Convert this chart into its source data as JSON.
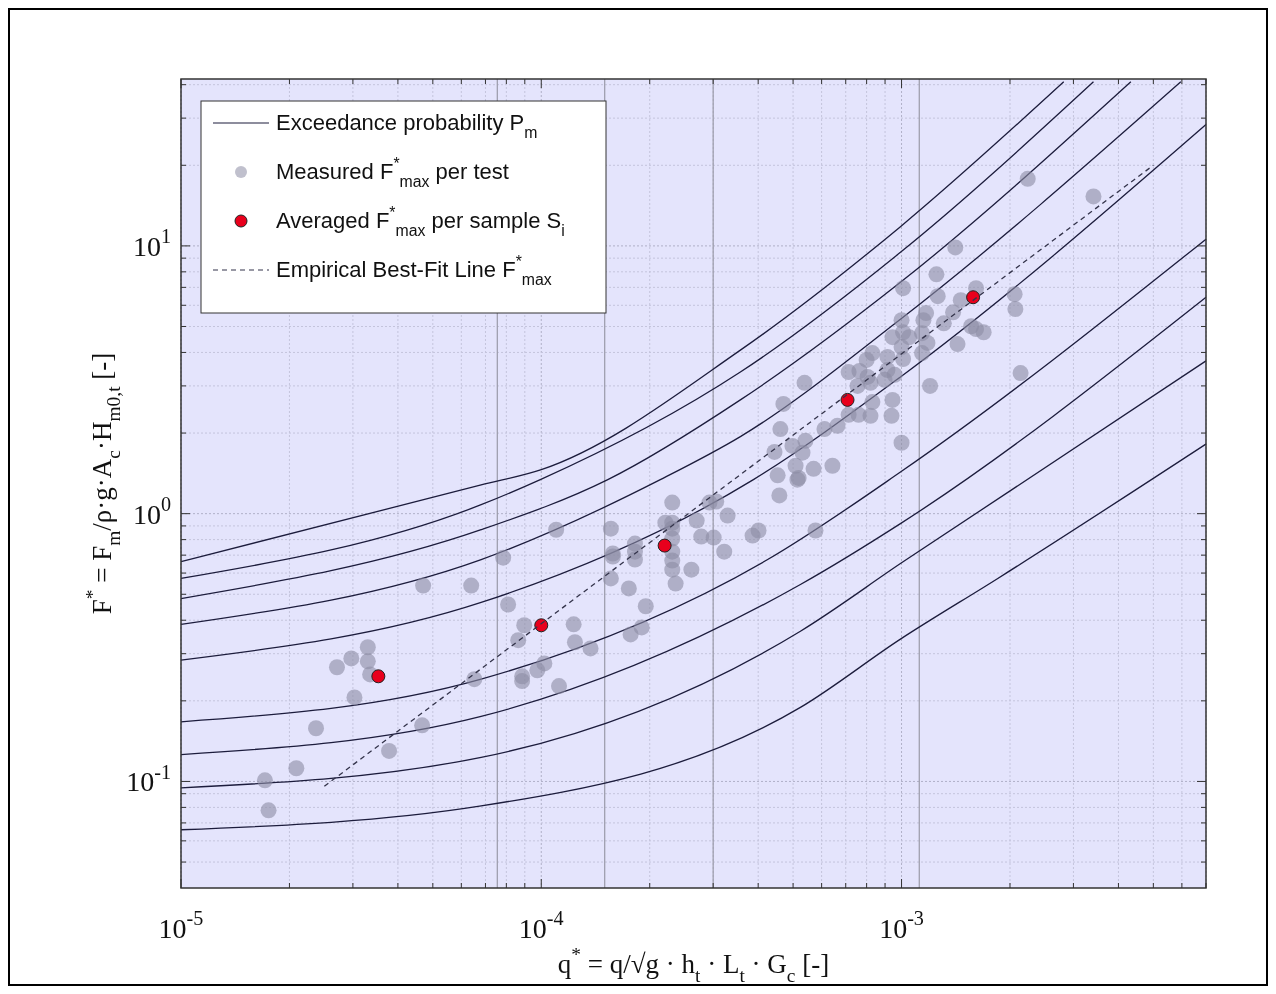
{
  "chart_data": {
    "type": "scatter",
    "xlabel": "q$^{*}$ = q/√g · h$_{t}$ · L$_{t}$ · G$_{c}$ [-]",
    "ylabel": "F$^{*}$ = F$_{m}$/ρ·g·A$_{c}$·H$_{m0,t}$ [-]",
    "log": "xy",
    "grid": true,
    "legend": "top left",
    "xlim": [
      1e-05,
      0.007
    ],
    "ylim": [
      0.04,
      42
    ],
    "xticks": [
      {
        "value": 1e-05,
        "label": "10$^{-5}$"
      },
      {
        "value": 2e-05,
        "label": null
      },
      {
        "value": 3e-05,
        "label": null
      },
      {
        "value": 4e-05,
        "label": null
      },
      {
        "value": 5e-05,
        "label": null
      },
      {
        "value": 6e-05,
        "label": null
      },
      {
        "value": 7e-05,
        "label": null
      },
      {
        "value": 8e-05,
        "label": null
      },
      {
        "value": 9e-05,
        "label": null
      },
      {
        "value": 0.0001,
        "label": "10$^{-4}$"
      },
      {
        "value": 0.0002,
        "label": null
      },
      {
        "value": 0.0003,
        "label": null
      },
      {
        "value": 0.0004,
        "label": null
      },
      {
        "value": 0.0005,
        "label": null
      },
      {
        "value": 0.0006,
        "label": null
      },
      {
        "value": 0.0007,
        "label": null
      },
      {
        "value": 0.0008,
        "label": null
      },
      {
        "value": 0.0009,
        "label": null
      },
      {
        "value": 0.001,
        "label": "10$^{-3}$"
      },
      {
        "value": 0.002,
        "label": null
      },
      {
        "value": 0.003,
        "label": null
      },
      {
        "value": 0.004,
        "label": null
      },
      {
        "value": 0.005,
        "label": null
      },
      {
        "value": 0.006,
        "label": null
      },
      {
        "value": 0.007,
        "label": null
      }
    ],
    "yticks": [
      {
        "value": 0.05,
        "label": null
      },
      {
        "value": 0.06,
        "label": null
      },
      {
        "value": 0.07,
        "label": null
      },
      {
        "value": 0.08,
        "label": null
      },
      {
        "value": 0.09,
        "label": null
      },
      {
        "value": 0.1,
        "label": "10$^{-1}$"
      },
      {
        "value": 0.2,
        "label": null
      },
      {
        "value": 0.3,
        "label": null
      },
      {
        "value": 0.4,
        "label": null
      },
      {
        "value": 0.5,
        "label": null
      },
      {
        "value": 0.6,
        "label": null
      },
      {
        "value": 0.7,
        "label": null
      },
      {
        "value": 0.8,
        "label": null
      },
      {
        "value": 0.9,
        "label": null
      },
      {
        "value": 1,
        "label": "10$^{0}$"
      },
      {
        "value": 2,
        "label": null
      },
      {
        "value": 3,
        "label": null
      },
      {
        "value": 4,
        "label": null
      },
      {
        "value": 5,
        "label": null
      },
      {
        "value": 6,
        "label": null
      },
      {
        "value": 7,
        "label": null
      },
      {
        "value": 8,
        "label": null
      },
      {
        "value": 9,
        "label": null
      },
      {
        "value": 10,
        "label": "10$^{1}$"
      },
      {
        "value": 20,
        "label": null
      },
      {
        "value": 30,
        "label": null
      },
      {
        "value": 40,
        "label": null
      }
    ],
    "ref_lines": [
      {
        "axis": "x",
        "value": 7.55e-05,
        "color": "#9a9aa8"
      },
      {
        "axis": "x",
        "value": 0.00015,
        "color": "#9a9aa8"
      },
      {
        "axis": "x",
        "value": 0.0003,
        "color": "#9a9aa8"
      },
      {
        "axis": "x",
        "value": 0.00112,
        "color": "#9a9aa8"
      }
    ],
    "series": [
      {
        "name": "Exceedance probability P$_{m}$",
        "type": "line",
        "color": "#1c1c3c",
        "line_style": "solid",
        "x": [
          1e-05,
          6.81e-05,
          0.0001,
          0.000357,
          0.000993,
          0.00282
        ],
        "values": [
          0.662,
          1.28,
          1.46,
          4.08,
          11.8,
          41
        ]
      },
      {
        "type": "line",
        "color": "#1c1c3c",
        "marker": "none",
        "line_style": "solid",
        "x": [
          1e-05,
          6.81e-05,
          9.94e-05,
          0.000357,
          0.000993,
          0.00341
        ],
        "values": [
          0.573,
          1.08,
          1.34,
          3.38,
          9.46,
          41
        ]
      },
      {
        "type": "line",
        "color": "#1c1c3c",
        "marker": "none",
        "line_style": "solid",
        "x": [
          1e-05,
          6.81e-05,
          0.000153,
          0.000357,
          0.000993,
          0.00433
        ],
        "values": [
          0.482,
          0.871,
          1.34,
          2.66,
          7.31,
          41
        ]
      },
      {
        "type": "line",
        "color": "#1c1c3c",
        "marker": "none",
        "line_style": "solid",
        "x": [
          1e-05,
          6.81e-05,
          0.000214,
          0.000357,
          0.000993,
          0.00596
        ],
        "values": [
          0.386,
          0.674,
          1.34,
          1.94,
          5.32,
          41
        ]
      },
      {
        "type": "line",
        "color": "#1c1c3c",
        "marker": "none",
        "line_style": "solid",
        "x": [
          1e-05,
          6.81e-05,
          0.000388,
          0.000993,
          0.007
        ],
        "values": [
          0.284,
          0.466,
          1.34,
          3.24,
          28.4
        ]
      },
      {
        "type": "line",
        "color": "#1c1c3c",
        "marker": "none",
        "line_style": "solid",
        "x": [
          1e-05,
          6.81e-05,
          0.000425,
          0.000993,
          0.007
        ],
        "values": [
          0.167,
          0.241,
          0.674,
          1.43,
          10.6
        ]
      },
      {
        "type": "line",
        "color": "#1c1c3c",
        "marker": "none",
        "line_style": "solid",
        "x": [
          1e-05,
          6.81e-05,
          0.000524,
          0.000993,
          0.007
        ],
        "values": [
          0.126,
          0.175,
          0.544,
          0.918,
          6.43
        ]
      },
      {
        "type": "line",
        "color": "#1c1c3c",
        "marker": "none",
        "line_style": "solid",
        "x": [
          1e-05,
          6.81e-05,
          0.000524,
          0.000993,
          0.007
        ],
        "values": [
          0.0946,
          0.123,
          0.364,
          0.651,
          3.72
        ]
      },
      {
        "type": "line",
        "color": "#1c1c3c",
        "marker": "none",
        "line_style": "solid",
        "x": [
          1e-05,
          6.81e-05,
          0.000524,
          0.000993,
          0.00185,
          0.007
        ],
        "values": [
          0.066,
          0.081,
          0.189,
          0.34,
          0.573,
          1.82
        ]
      },
      {
        "name": "Measured F$^{*}$$_{max}$ per test",
        "type": "scatter",
        "color": "#8c8ca4",
        "marker": "circle",
        "x": [
          1.71e-05,
          1.75e-05,
          2.09e-05,
          2.37e-05,
          2.71e-05,
          2.97e-05,
          3.03e-05,
          3.3e-05,
          3.3e-05,
          3.35e-05,
          3.78e-05,
          4.67e-05,
          4.7e-05,
          6.39e-05,
          6.52e-05,
          7.84e-05,
          8.09e-05,
          8.97e-05,
          8.63e-05,
          0.000102,
          9.75e-05,
          8.85e-05,
          8.85e-05,
          0.000112,
          0.00011,
          0.000123,
          0.000124,
          0.000137,
          0.000156,
          0.000158,
          0.000158,
          0.000156,
          0.000175,
          0.000182,
          0.000182,
          0.000182,
          0.000195,
          0.00019,
          0.000177,
          0.000231,
          0.000221,
          0.000231,
          0.000231,
          0.000231,
          0.000231,
          0.000231,
          0.000231,
          0.000236,
          0.000261,
          0.00027,
          0.000278,
          0.000301,
          0.000322,
          0.000329,
          0.000293,
          0.000306,
          0.000386,
          0.000401,
          0.000458,
          0.000514,
          0.000577,
          0.000453,
          0.000518,
          0.000508,
          0.00057,
          0.000643,
          0.000444,
          0.000531,
          0.000498,
          0.000541,
          0.000461,
          0.000611,
          0.000664,
          0.00047,
          0.000538,
          0.000713,
          0.00076,
          0.00082,
          0.000938,
          0.000944,
          0.001,
          0.00083,
          0.000713,
          0.000764,
          0.000755,
          0.000805,
          0.00082,
          0.00083,
          0.0008,
          0.000914,
          0.000914,
          0.000897,
          0.000957,
          0.00101,
          0.000944,
          0.001,
          0.00101,
          0.001,
          0.00101,
          0.00105,
          0.00114,
          0.00114,
          0.00118,
          0.00115,
          0.00117,
          0.0012,
          0.00131,
          0.00139,
          0.00143,
          0.00146,
          0.00156,
          0.00161,
          0.00161,
          0.00169,
          0.00126,
          0.00125,
          0.00141,
          0.00206,
          0.00207,
          0.00214,
          0.00224,
          0.00341
        ],
        "values": [
          0.101,
          0.078,
          0.112,
          0.158,
          0.267,
          0.288,
          0.206,
          0.317,
          0.281,
          0.251,
          0.13,
          0.162,
          0.539,
          0.539,
          0.241,
          0.685,
          0.458,
          0.383,
          0.337,
          0.276,
          0.26,
          0.247,
          0.237,
          0.227,
          0.871,
          0.386,
          0.331,
          0.314,
          0.879,
          0.71,
          0.692,
          0.573,
          0.526,
          0.773,
          0.721,
          0.674,
          0.451,
          0.376,
          0.354,
          1.1,
          0.925,
          0.925,
          0.879,
          0.807,
          0.721,
          0.668,
          0.618,
          0.548,
          0.618,
          0.942,
          0.821,
          0.814,
          0.721,
          0.984,
          1.1,
          1.11,
          0.828,
          0.865,
          1.17,
          1.34,
          0.865,
          1.39,
          1.36,
          1.51,
          1.47,
          1.51,
          1.7,
          1.69,
          1.79,
          1.87,
          2.07,
          2.07,
          2.13,
          2.57,
          3.08,
          2.34,
          2.34,
          2.32,
          2.32,
          2.66,
          1.84,
          2.61,
          3.38,
          3.41,
          3.0,
          3.24,
          3.08,
          3.98,
          3.75,
          3.85,
          3.44,
          3.16,
          3.3,
          3.78,
          4.56,
          4.19,
          4.76,
          5.28,
          6.95,
          4.56,
          4.72,
          3.98,
          4.34,
          5.28,
          5.61,
          3.0,
          5.14,
          5.65,
          4.3,
          6.27,
          5.01,
          6.95,
          4.89,
          4.76,
          6.49,
          7.83,
          9.87,
          6.6,
          5.81,
          3.35,
          17.8,
          15.3
        ]
      },
      {
        "name": "Averaged F$^{*}$$_{max}$ per sample S$_{i}$",
        "type": "scatter",
        "color": "#e8001c",
        "marker": "circle",
        "x": [
          3.53e-05,
          0.0001,
          0.00022,
          0.000708,
          0.00158
        ],
        "values": [
          0.247,
          0.383,
          0.76,
          2.66,
          6.43
        ]
      },
      {
        "name": "Empirical Best-Fit Line F$^{*}$$_{max}$",
        "type": "line",
        "color": "#33334a",
        "line_style": "dashed",
        "x": [
          2.5e-05,
          0.005
        ],
        "values": [
          0.096,
          20
        ]
      }
    ]
  }
}
